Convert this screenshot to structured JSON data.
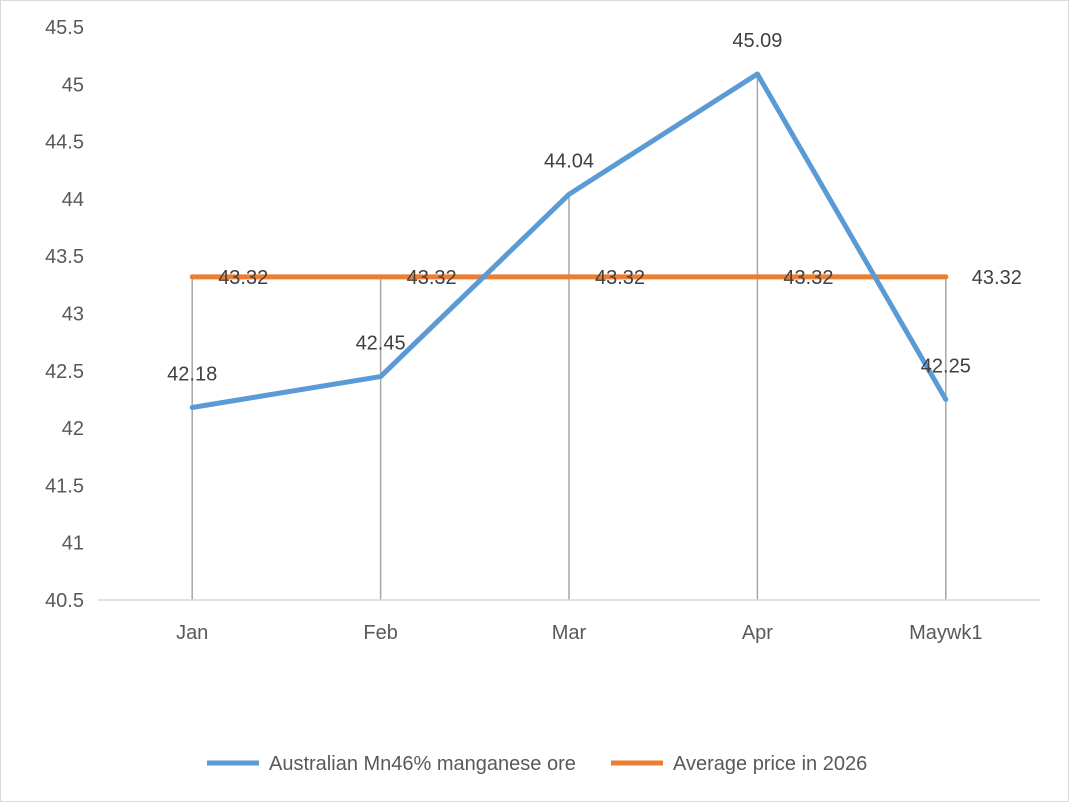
{
  "chart_data": {
    "type": "line",
    "categories": [
      "Jan",
      "Feb",
      "Mar",
      "Apr",
      "Maywk1"
    ],
    "series": [
      {
        "name": "Australian Mn46% manganese ore",
        "values": [
          42.18,
          42.45,
          44.04,
          45.09,
          42.25
        ],
        "color": "#5b9bd5",
        "labels": [
          "42.18",
          "42.45",
          "44.04",
          "45.09",
          "42.25"
        ]
      },
      {
        "name": "Average price in 2026",
        "values": [
          43.32,
          43.32,
          43.32,
          43.32,
          43.32
        ],
        "color": "#ed7d31",
        "labels": [
          "43.32",
          "43.32",
          "43.32",
          "43.32",
          "43.32"
        ]
      }
    ],
    "y_ticks": [
      "40.5",
      "41",
      "41.5",
      "42",
      "42.5",
      "43",
      "43.5",
      "44",
      "44.5",
      "45",
      "45.5"
    ],
    "ylim": [
      40.5,
      45.5
    ],
    "drop_lines": true,
    "grid": false,
    "legend_position": "bottom"
  }
}
